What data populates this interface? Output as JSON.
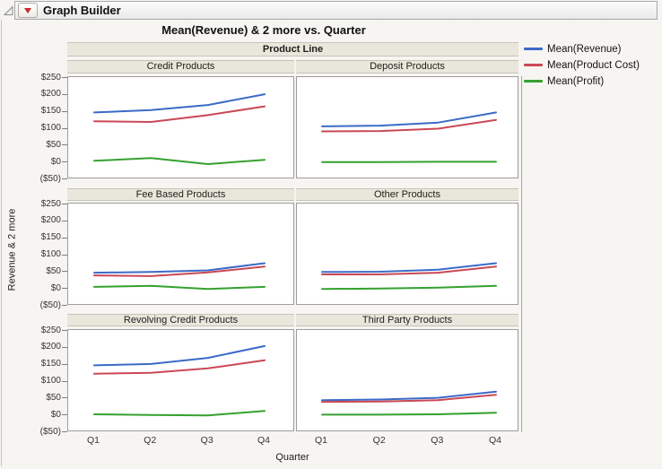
{
  "window": {
    "header_title": "Graph Builder"
  },
  "chart": {
    "title": "Mean(Revenue) & 2 more vs. Quarter",
    "group_header": "Product Line",
    "xlabel": "Quarter",
    "ylabel": "Revenue & 2 more"
  },
  "chart_data": {
    "type": "line",
    "layout": "trellis 3 rows x 2 cols grouped by Product Line, shared axes",
    "x": [
      "Q1",
      "Q2",
      "Q3",
      "Q4"
    ],
    "y_tick_labels": [
      "$250",
      "$200",
      "$150",
      "$100",
      "$50",
      "$0",
      "($50)"
    ],
    "ylim": [
      -50,
      250
    ],
    "grid": false,
    "legend_position": "top-right",
    "series": [
      {
        "key": "mean_revenue",
        "name": "Mean(Revenue)",
        "color": "#3b6bc8"
      },
      {
        "key": "mean_product_cost",
        "name": "Mean(Product Cost)",
        "color": "#c94855"
      },
      {
        "key": "mean_profit",
        "name": "Mean(Profit)",
        "color": "#35a12f"
      }
    ],
    "panels": [
      {
        "label": "Credit Products",
        "mean_revenue": [
          148,
          155,
          170,
          202
        ],
        "mean_product_cost": [
          122,
          120,
          140,
          166
        ],
        "mean_profit": [
          5,
          13,
          -5,
          8
        ]
      },
      {
        "label": "Deposit Products",
        "mean_revenue": [
          107,
          109,
          118,
          148
        ],
        "mean_product_cost": [
          92,
          93,
          100,
          126
        ],
        "mean_profit": [
          1,
          1,
          2,
          2
        ]
      },
      {
        "label": "Fee Based Products",
        "mean_revenue": [
          48,
          50,
          55,
          76
        ],
        "mean_product_cost": [
          40,
          38,
          49,
          66
        ],
        "mean_profit": [
          6,
          9,
          0,
          6
        ]
      },
      {
        "label": "Other Products",
        "mean_revenue": [
          50,
          51,
          57,
          76
        ],
        "mean_product_cost": [
          43,
          43,
          48,
          66
        ],
        "mean_profit": [
          0,
          1,
          4,
          9
        ]
      },
      {
        "label": "Revolving Credit Products",
        "mean_revenue": [
          148,
          152,
          170,
          205
        ],
        "mean_product_cost": [
          123,
          126,
          139,
          163
        ],
        "mean_profit": [
          3,
          1,
          0,
          13
        ]
      },
      {
        "label": "Third Party Products",
        "mean_revenue": [
          45,
          47,
          52,
          70
        ],
        "mean_product_cost": [
          40,
          41,
          45,
          61
        ],
        "mean_profit": [
          2,
          2,
          3,
          8
        ]
      }
    ]
  }
}
